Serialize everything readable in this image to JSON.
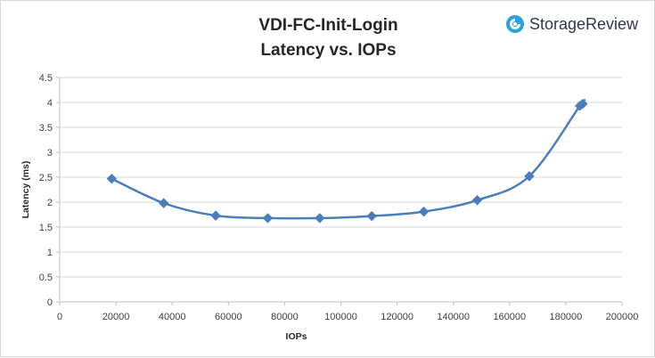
{
  "chart_data": {
    "type": "line",
    "title": "VDI-FC-Init-Login",
    "subtitle": "Latency vs. IOPs",
    "xlabel": "IOPs",
    "ylabel": "Latency (ms)",
    "xlim": [
      0,
      200000
    ],
    "ylim": [
      0,
      4.5
    ],
    "x_ticks": [
      "0",
      "20000",
      "40000",
      "60000",
      "80000",
      "100000",
      "120000",
      "140000",
      "160000",
      "180000",
      "200000"
    ],
    "y_ticks": [
      "0",
      "0.5",
      "1",
      "1.5",
      "2",
      "2.5",
      "3",
      "3.5",
      "4",
      "4.5"
    ],
    "grid": "horizontal",
    "series": [
      {
        "name": "",
        "color": "#4a7ebb",
        "marker": "diamond",
        "smooth": true,
        "points": [
          {
            "x": 18500,
            "y": 2.47
          },
          {
            "x": 37000,
            "y": 1.98
          },
          {
            "x": 55500,
            "y": 1.73
          },
          {
            "x": 74000,
            "y": 1.68
          },
          {
            "x": 92500,
            "y": 1.68
          },
          {
            "x": 111000,
            "y": 1.72
          },
          {
            "x": 129500,
            "y": 1.81
          },
          {
            "x": 148500,
            "y": 2.04
          },
          {
            "x": 167000,
            "y": 2.52
          },
          {
            "x": 185000,
            "y": 3.93
          },
          {
            "x": 186000,
            "y": 3.97
          }
        ]
      }
    ]
  },
  "brand": {
    "name": "StorageReview",
    "icon": "storagereview-logo-icon",
    "icon_color": "#2aa3dc"
  }
}
